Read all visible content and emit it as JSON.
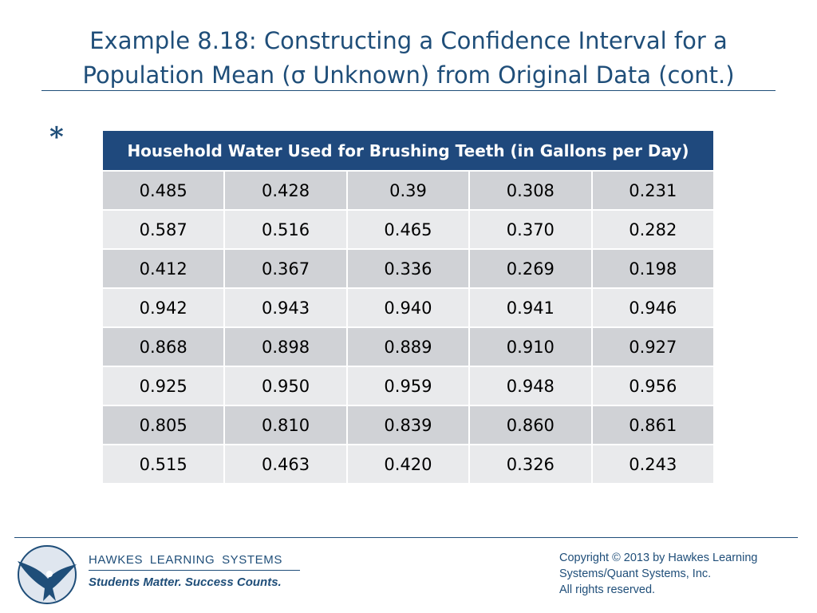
{
  "title": {
    "line1": "Example 8.18: Constructing a Confidence Interval for a",
    "line2": "Population Mean (σ Unknown) from Original Data (cont.)"
  },
  "bullet": "*",
  "table": {
    "header": "Household Water Used for Brushing Teeth (in Gallons per Day)",
    "rows": [
      [
        "0.485",
        "0.428",
        "0.39",
        "0.308",
        "0.231"
      ],
      [
        "0.587",
        "0.516",
        "0.465",
        "0.370",
        "0.282"
      ],
      [
        "0.412",
        "0.367",
        "0.336",
        "0.269",
        "0.198"
      ],
      [
        "0.942",
        "0.943",
        "0.940",
        "0.941",
        "0.946"
      ],
      [
        "0.868",
        "0.898",
        "0.889",
        "0.910",
        "0.927"
      ],
      [
        "0.925",
        "0.950",
        "0.959",
        "0.948",
        "0.956"
      ],
      [
        "0.805",
        "0.810",
        "0.839",
        "0.860",
        "0.861"
      ],
      [
        "0.515",
        "0.463",
        "0.420",
        "0.326",
        "0.243"
      ]
    ]
  },
  "footer": {
    "logo_icon": "eagle-logo-icon",
    "company": "HAWKES LEARNING SYSTEMS",
    "tagline": "Students Matter. Success Counts.",
    "copyright_lines": [
      "Copyright © 2013 by Hawkes Learning",
      "Systems/Quant Systems, Inc.",
      "All rights reserved."
    ]
  },
  "colors": {
    "accent": "#1f4e79",
    "header_bg": "#1f497d",
    "row_dark": "#d0d2d6",
    "row_light": "#e9eaec"
  }
}
